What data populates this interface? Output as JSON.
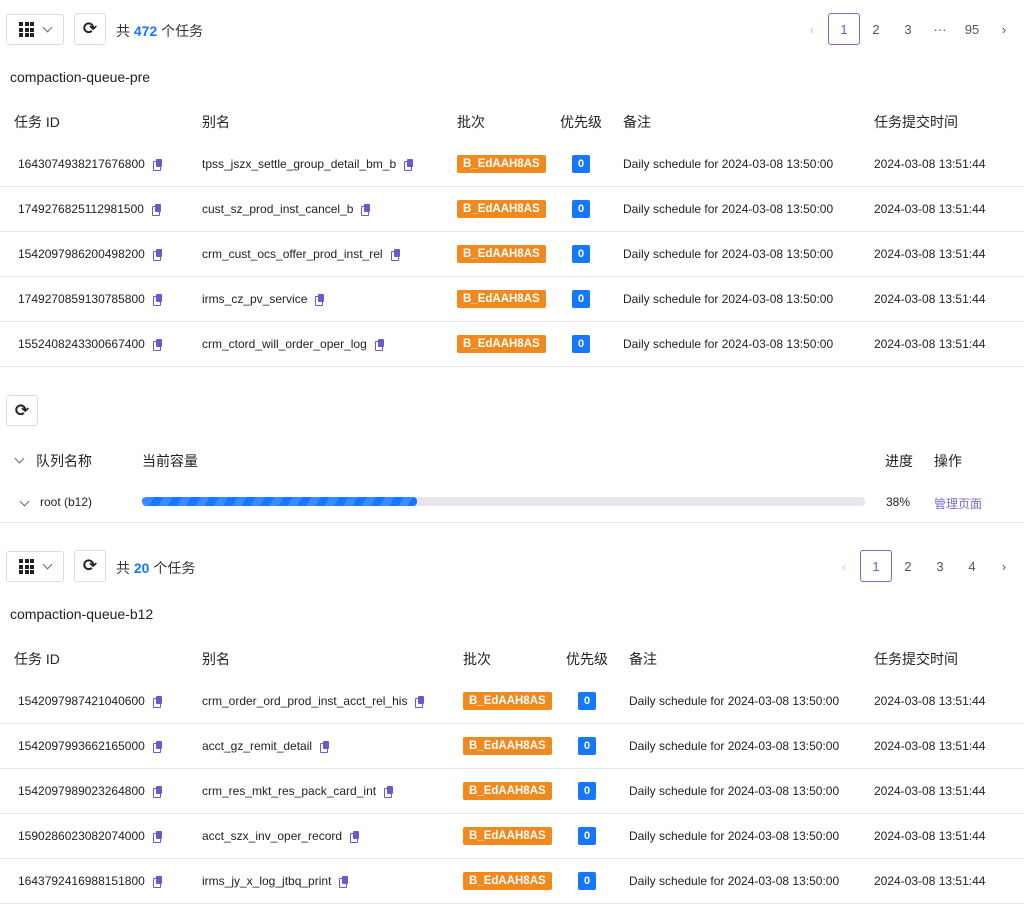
{
  "section1": {
    "total_prefix": "共",
    "total_count": "472",
    "total_suffix": "个任务",
    "pages": [
      "1",
      "2",
      "3",
      "···",
      "95"
    ],
    "active_page": "1",
    "queue_title": "compaction-queue-pre",
    "headers": [
      "任务 ID",
      "别名",
      "批次",
      "优先级",
      "备注",
      "任务提交时间"
    ],
    "rows": [
      {
        "id": "1643074938217676800",
        "alias": "tpss_jszx_settle_group_detail_bm_b",
        "batch": "B_EdAAH8AS",
        "priority": "0",
        "remark": "Daily schedule for 2024-03-08 13:50:00",
        "time": "2024-03-08 13:51:44"
      },
      {
        "id": "1749276825112981500",
        "alias": "cust_sz_prod_inst_cancel_b",
        "batch": "B_EdAAH8AS",
        "priority": "0",
        "remark": "Daily schedule for 2024-03-08 13:50:00",
        "time": "2024-03-08 13:51:44"
      },
      {
        "id": "1542097986200498200",
        "alias": "crm_cust_ocs_offer_prod_inst_rel",
        "batch": "B_EdAAH8AS",
        "priority": "0",
        "remark": "Daily schedule for 2024-03-08 13:50:00",
        "time": "2024-03-08 13:51:44"
      },
      {
        "id": "1749270859130785800",
        "alias": "irms_cz_pv_service",
        "batch": "B_EdAAH8AS",
        "priority": "0",
        "remark": "Daily schedule for 2024-03-08 13:50:00",
        "time": "2024-03-08 13:51:44"
      },
      {
        "id": "1552408243300667400",
        "alias": "crm_ctord_will_order_oper_log",
        "batch": "B_EdAAH8AS",
        "priority": "0",
        "remark": "Daily schedule for 2024-03-08 13:50:00",
        "time": "2024-03-08 13:51:44"
      }
    ]
  },
  "queue": {
    "headers": {
      "name": "队列名称",
      "capacity": "当前容量",
      "progress": "进度",
      "action": "操作"
    },
    "row": {
      "name": "root (b12)",
      "progress_percent": 38,
      "progress_label": "38%",
      "action": "管理页面"
    }
  },
  "section2": {
    "total_prefix": "共",
    "total_count": "20",
    "total_suffix": "个任务",
    "pages": [
      "1",
      "2",
      "3",
      "4"
    ],
    "active_page": "1",
    "queue_title": "compaction-queue-b12",
    "headers": [
      "任务 ID",
      "别名",
      "批次",
      "优先级",
      "备注",
      "任务提交时间"
    ],
    "rows": [
      {
        "id": "1542097987421040600",
        "alias": "crm_order_ord_prod_inst_acct_rel_his",
        "batch": "B_EdAAH8AS",
        "priority": "0",
        "remark": "Daily schedule for 2024-03-08 13:50:00",
        "time": "2024-03-08 13:51:44"
      },
      {
        "id": "1542097993662165000",
        "alias": "acct_gz_remit_detail",
        "batch": "B_EdAAH8AS",
        "priority": "0",
        "remark": "Daily schedule for 2024-03-08 13:50:00",
        "time": "2024-03-08 13:51:44"
      },
      {
        "id": "1542097989023264800",
        "alias": "crm_res_mkt_res_pack_card_int",
        "batch": "B_EdAAH8AS",
        "priority": "0",
        "remark": "Daily schedule for 2024-03-08 13:50:00",
        "time": "2024-03-08 13:51:44"
      },
      {
        "id": "1590286023082074000",
        "alias": "acct_szx_inv_oper_record",
        "batch": "B_EdAAH8AS",
        "priority": "0",
        "remark": "Daily schedule for 2024-03-08 13:50:00",
        "time": "2024-03-08 13:51:44"
      },
      {
        "id": "1643792416988151800",
        "alias": "irms_jy_x_log_jtbq_print",
        "batch": "B_EdAAH8AS",
        "priority": "0",
        "remark": "Daily schedule for 2024-03-08 13:50:00",
        "time": "2024-03-08 13:51:44"
      }
    ]
  },
  "colors": {
    "accent": "#1677ff",
    "batch": "#f0891e",
    "link": "#7a6bd0"
  }
}
